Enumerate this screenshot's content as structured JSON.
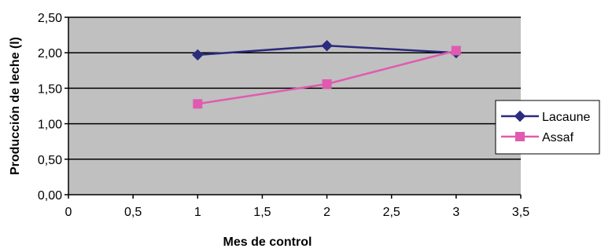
{
  "chart_data": {
    "type": "scatter",
    "title": "",
    "xlabel": "Mes de control",
    "ylabel": "Producción de leche (l)",
    "xlim": [
      0,
      3.5
    ],
    "ylim": [
      0,
      2.5
    ],
    "x_ticks": [
      0,
      0.5,
      1,
      1.5,
      2,
      2.5,
      3,
      3.5
    ],
    "x_tick_labels": [
      "0",
      "0,5",
      "1",
      "1,5",
      "2",
      "2,5",
      "3",
      "3,5"
    ],
    "y_ticks": [
      0,
      0.5,
      1,
      1.5,
      2,
      2.5
    ],
    "y_tick_labels": [
      "0,00",
      "0,50",
      "1,00",
      "1,50",
      "2,00",
      "2,50"
    ],
    "grid": "horizontal",
    "plot_background": "#c0c0c0",
    "legend_position": "right",
    "series": [
      {
        "name": "Lacaune",
        "marker": "diamond",
        "color": "#2b2b7f",
        "x": [
          1,
          2,
          3
        ],
        "y": [
          1.97,
          2.1,
          2.0
        ]
      },
      {
        "name": "Assaf",
        "marker": "square",
        "color": "#e05bb0",
        "x": [
          1,
          2,
          3
        ],
        "y": [
          1.28,
          1.56,
          2.03
        ]
      }
    ]
  }
}
